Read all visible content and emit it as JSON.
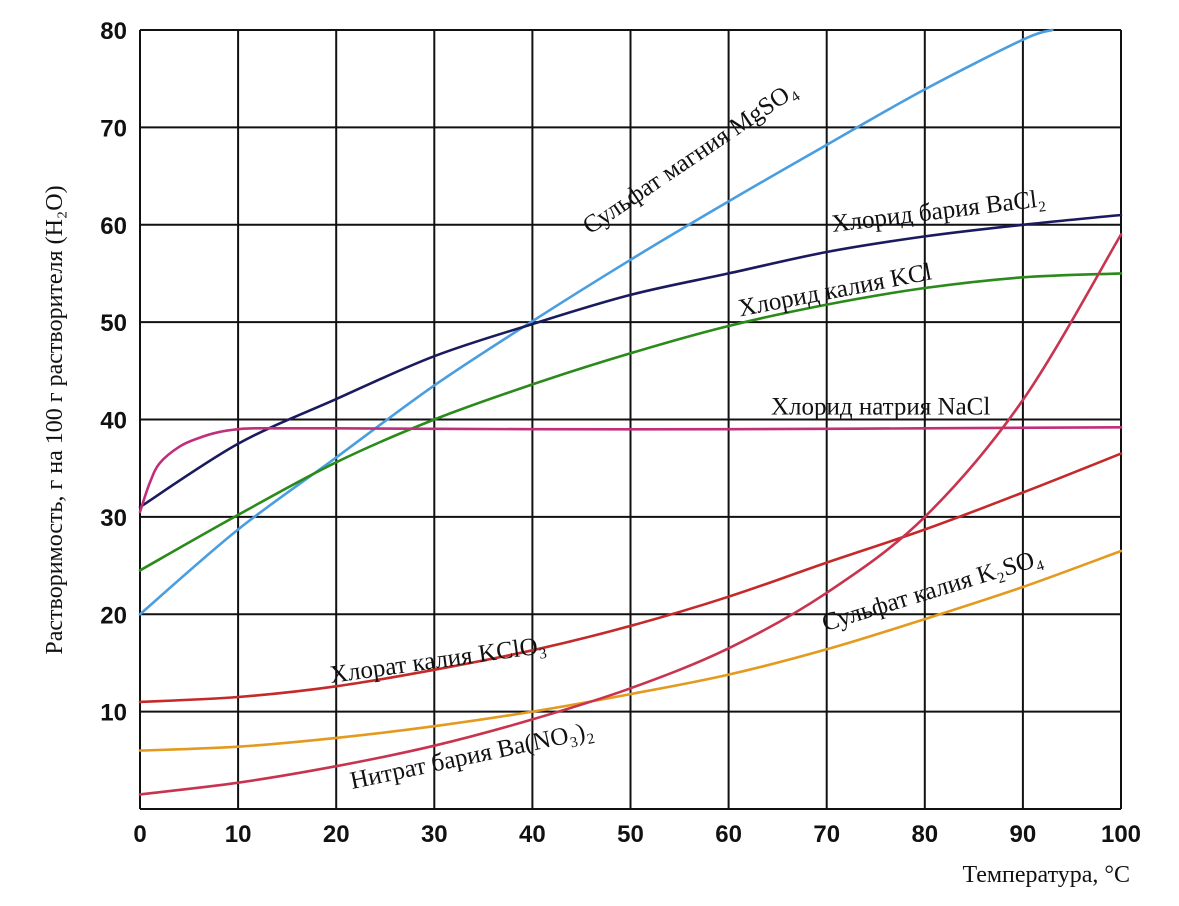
{
  "chart_data": {
    "type": "line",
    "title": "",
    "xlabel": "Температура, °С",
    "ylabel": "Растворимость, г на 100 г растворителя (H₂O)",
    "xlim": [
      0,
      100
    ],
    "ylim": [
      0,
      80
    ],
    "grid": true,
    "x_ticks": [
      0,
      10,
      20,
      30,
      40,
      50,
      60,
      70,
      80,
      90,
      100
    ],
    "y_ticks": [
      10,
      20,
      30,
      40,
      50,
      60,
      70,
      80
    ],
    "series": [
      {
        "name": "Сульфат магния MgSO₄",
        "color": "#4a9ee0",
        "x": [
          0,
          10,
          20,
          30,
          40,
          50,
          60,
          70,
          80,
          90,
          93
        ],
        "y": [
          20,
          28.7,
          36.1,
          43.5,
          50.1,
          56.4,
          62.4,
          68.2,
          73.9,
          79,
          80
        ]
      },
      {
        "name": "Хлорид бария BaCl₂",
        "color": "#1a1a5e",
        "x": [
          0,
          10,
          20,
          30,
          40,
          50,
          60,
          70,
          80,
          90,
          100
        ],
        "y": [
          31,
          37.5,
          42.1,
          46.5,
          49.8,
          52.8,
          55,
          57.2,
          58.8,
          60,
          61
        ]
      },
      {
        "name": "Хлорид калия KCl",
        "color": "#2a8a1a",
        "x": [
          0,
          10,
          20,
          30,
          40,
          50,
          60,
          70,
          80,
          90,
          100
        ],
        "y": [
          24.5,
          30.2,
          35.6,
          40,
          43.6,
          46.8,
          49.6,
          51.8,
          53.5,
          54.6,
          55
        ]
      },
      {
        "name": "Хлорид натрия NaCl",
        "color": "#c0307a",
        "x": [
          0,
          1,
          2,
          4,
          6,
          8,
          10,
          12,
          20,
          40,
          60,
          80,
          100
        ],
        "y": [
          30.5,
          33.5,
          35.5,
          37.2,
          38.1,
          38.7,
          39,
          39.1,
          39.1,
          39,
          39,
          39.1,
          39.2
        ]
      },
      {
        "name": "Хлорат калия KClO₃",
        "color": "#c42a2a",
        "x": [
          0,
          10,
          20,
          30,
          40,
          50,
          60,
          70,
          80,
          90,
          100
        ],
        "y": [
          11,
          11.5,
          12.6,
          14.3,
          16.3,
          18.8,
          21.8,
          25.3,
          28.7,
          32.5,
          36.5
        ]
      },
      {
        "name": "Сульфат калия K₂SO₄",
        "color": "#e39a1e",
        "x": [
          0,
          10,
          20,
          30,
          40,
          50,
          60,
          70,
          80,
          90,
          100
        ],
        "y": [
          6,
          6.4,
          7.3,
          8.5,
          10,
          11.8,
          13.8,
          16.4,
          19.5,
          22.8,
          26.5
        ]
      },
      {
        "name": "Нитрат бария Ba(NO₃)₂",
        "color": "#c8344f",
        "x": [
          0,
          10,
          20,
          30,
          40,
          50,
          60,
          70,
          80,
          90,
          100
        ],
        "y": [
          1.5,
          2.7,
          4.4,
          6.5,
          9.2,
          12.4,
          16.5,
          22.2,
          30,
          42,
          59
        ]
      }
    ],
    "annotations": [
      {
        "text": "Сульфат магния MgSO₄",
        "x": 56.5,
        "y": 66.2,
        "angle": -34
      },
      {
        "text": "Хлорид бария BaCl₂",
        "x": 81.5,
        "y": 60.6,
        "angle": -7
      },
      {
        "text": "Хлорид калия KCl",
        "x": 71,
        "y": 52.5,
        "angle": -11
      },
      {
        "text": "Хлорид натрия NaCl",
        "x": 75.5,
        "y": 40.5,
        "angle": 0
      },
      {
        "text": "Хлорат калия KClO₃",
        "x": 30.5,
        "y": 14.5,
        "angle": -8
      },
      {
        "text": "Сульфат калия K₂SO₄",
        "x": 81,
        "y": 21.7,
        "angle": -17
      },
      {
        "text": "Нитрат бария Ba(NO₃)₂",
        "x": 34,
        "y": 4.7,
        "angle": -12
      }
    ]
  }
}
